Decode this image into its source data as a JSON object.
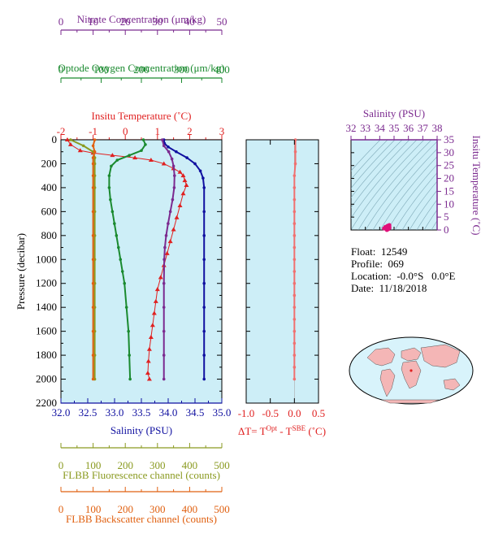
{
  "colors": {
    "panel_bg": "#cdeef7",
    "nitrate": "#7b2a8f",
    "oxygen": "#1a8a2f",
    "temperature": "#e02020",
    "salinity": "#1010a0",
    "fluorescence": "#8a9a20",
    "backscatter": "#e06010",
    "delta_t": "#f07070",
    "land": "#f4b6b6"
  },
  "info": {
    "float": "Float:  12549",
    "profile": "Profile:  069",
    "location": "Location:  -0.0°S   0.0°E",
    "date": "Date:  11/18/2018"
  },
  "chart_data": [
    {
      "type": "line",
      "panel": "profile",
      "ylabel": "Pressure (decibar)",
      "ylim": [
        2200,
        0
      ],
      "y_ticks": [
        "0",
        "200",
        "400",
        "600",
        "800",
        "1000",
        "1200",
        "1400",
        "1600",
        "1800",
        "2000",
        "2200"
      ],
      "axes": {
        "nitrate": {
          "label": "Nitrate Concentration (μm/kg)",
          "range": [
            0,
            50
          ],
          "ticks": [
            "0",
            "10",
            "20",
            "30",
            "40",
            "50"
          ]
        },
        "oxygen": {
          "label": "Optode Oxygen Concentration (μm/kg)",
          "range": [
            0,
            400
          ],
          "ticks": [
            "0",
            "100",
            "200",
            "300",
            "400"
          ]
        },
        "temperature": {
          "label": "Insitu Temperature (˚C)",
          "range": [
            -2,
            3
          ],
          "ticks": [
            "-2",
            "-1",
            "0",
            "1",
            "2",
            "3"
          ]
        },
        "salinity": {
          "label": "Salinity (PSU)",
          "range": [
            32,
            35
          ],
          "ticks": [
            "32.0",
            "32.5",
            "33.0",
            "33.5",
            "34.0",
            "34.5",
            "35.0"
          ]
        },
        "fluorescence": {
          "label": "FLBB Fluorescence channel (counts)",
          "range": [
            0,
            500
          ],
          "ticks": [
            "0",
            "100",
            "200",
            "300",
            "400",
            "500"
          ]
        },
        "backscatter": {
          "label": "FLBB Backscatter channel (counts)",
          "range": [
            0,
            500
          ],
          "ticks": [
            "0",
            "100",
            "200",
            "300",
            "400",
            "500"
          ]
        }
      },
      "series": [
        {
          "name": "Insitu Temperature",
          "axis": "temperature",
          "points": [
            [
              -1.8,
              0
            ],
            [
              -1.7,
              40
            ],
            [
              -1.4,
              90
            ],
            [
              -1.0,
              110
            ],
            [
              -0.4,
              130
            ],
            [
              0.3,
              150
            ],
            [
              0.8,
              170
            ],
            [
              1.2,
              200
            ],
            [
              1.5,
              240
            ],
            [
              1.7,
              270
            ],
            [
              1.8,
              300
            ],
            [
              1.85,
              340
            ],
            [
              1.9,
              380
            ],
            [
              1.8,
              450
            ],
            [
              1.7,
              550
            ],
            [
              1.6,
              650
            ],
            [
              1.5,
              750
            ],
            [
              1.4,
              850
            ],
            [
              1.3,
              950
            ],
            [
              1.2,
              1050
            ],
            [
              1.1,
              1150
            ],
            [
              1.0,
              1250
            ],
            [
              0.95,
              1350
            ],
            [
              0.9,
              1450
            ],
            [
              0.85,
              1550
            ],
            [
              0.8,
              1650
            ],
            [
              0.75,
              1750
            ],
            [
              0.72,
              1850
            ],
            [
              0.7,
              1950
            ],
            [
              0.75,
              2000
            ]
          ]
        },
        {
          "name": "Salinity",
          "axis": "salinity",
          "points": [
            [
              33.92,
              0
            ],
            [
              33.93,
              30
            ],
            [
              34.0,
              60
            ],
            [
              34.15,
              100
            ],
            [
              34.35,
              150
            ],
            [
              34.5,
              200
            ],
            [
              34.6,
              260
            ],
            [
              34.65,
              320
            ],
            [
              34.67,
              400
            ],
            [
              34.67,
              600
            ],
            [
              34.67,
              800
            ],
            [
              34.67,
              1000
            ],
            [
              34.67,
              1200
            ],
            [
              34.67,
              1400
            ],
            [
              34.67,
              1600
            ],
            [
              34.67,
              1800
            ],
            [
              34.67,
              2000
            ]
          ]
        },
        {
          "name": "Nitrate",
          "axis": "nitrate",
          "points": [
            [
              31.5,
              0
            ],
            [
              32,
              50
            ],
            [
              33.5,
              100
            ],
            [
              34.5,
              160
            ],
            [
              35,
              220
            ],
            [
              35.3,
              300
            ],
            [
              35.2,
              400
            ],
            [
              34.7,
              500
            ],
            [
              34,
              600
            ],
            [
              33.3,
              700
            ],
            [
              32.7,
              800
            ],
            [
              32.3,
              900
            ],
            [
              32.1,
              1000
            ],
            [
              32,
              1200
            ],
            [
              32,
              1400
            ],
            [
              32,
              1600
            ],
            [
              32,
              1800
            ],
            [
              32,
              2000
            ]
          ]
        },
        {
          "name": "Oxygen",
          "axis": "oxygen",
          "points": [
            [
              205,
              0
            ],
            [
              210,
              40
            ],
            [
              200,
              90
            ],
            [
              170,
              130
            ],
            [
              140,
              170
            ],
            [
              125,
              220
            ],
            [
              120,
              300
            ],
            [
              120,
              400
            ],
            [
              123,
              500
            ],
            [
              128,
              600
            ],
            [
              133,
              700
            ],
            [
              138,
              800
            ],
            [
              143,
              900
            ],
            [
              148,
              1000
            ],
            [
              153,
              1100
            ],
            [
              158,
              1200
            ],
            [
              163,
              1400
            ],
            [
              168,
              1600
            ],
            [
              170,
              1800
            ],
            [
              172,
              2000
            ]
          ]
        },
        {
          "name": "Fluorescence",
          "axis": "fluorescence",
          "points": [
            [
              30,
              0
            ],
            [
              70,
              50
            ],
            [
              100,
              100
            ],
            [
              105,
              150
            ],
            [
              105,
              200
            ],
            [
              105,
              300
            ],
            [
              105,
              400
            ],
            [
              105,
              600
            ],
            [
              105,
              800
            ],
            [
              105,
              1000
            ],
            [
              105,
              1200
            ],
            [
              105,
              1400
            ],
            [
              105,
              1600
            ],
            [
              105,
              1800
            ],
            [
              105,
              2000
            ]
          ]
        },
        {
          "name": "Backscatter",
          "axis": "backscatter",
          "points": [
            [
              105,
              0
            ],
            [
              100,
              50
            ],
            [
              105,
              100
            ],
            [
              100,
              150
            ],
            [
              100,
              200
            ],
            [
              100,
              300
            ],
            [
              100,
              400
            ],
            [
              100,
              600
            ],
            [
              100,
              800
            ],
            [
              100,
              1000
            ],
            [
              100,
              1200
            ],
            [
              100,
              1400
            ],
            [
              100,
              1600
            ],
            [
              100,
              1800
            ],
            [
              100,
              2000
            ]
          ]
        }
      ]
    },
    {
      "type": "line",
      "panel": "delta_t",
      "xlabel": "ΔT= T^Opt - T^SBE (˚C)",
      "xlabel_parts": {
        "prefix": "ΔT= T",
        "sup1": "Opt",
        "mid": " - T",
        "sup2": "SBE",
        "suffix": " (˚C)"
      },
      "xlim": [
        -1.0,
        0.5
      ],
      "x_ticks": [
        "-1.0",
        "-0.5",
        "0.0",
        "0.5"
      ],
      "ylim": [
        2200,
        0
      ],
      "series": [
        {
          "points": [
            [
              0.02,
              0
            ],
            [
              0.02,
              100
            ],
            [
              0.02,
              200
            ],
            [
              0.0,
              300
            ],
            [
              0.0,
              400
            ],
            [
              0.0,
              500
            ],
            [
              0.0,
              600
            ],
            [
              0.0,
              700
            ],
            [
              0.0,
              800
            ],
            [
              0.0,
              900
            ],
            [
              0.0,
              1000
            ],
            [
              0.0,
              1100
            ],
            [
              0.0,
              1200
            ],
            [
              0.0,
              1300
            ],
            [
              0.0,
              1400
            ],
            [
              0.0,
              1500
            ],
            [
              0.0,
              1600
            ],
            [
              0.0,
              1700
            ],
            [
              0.0,
              1800
            ],
            [
              0.0,
              1900
            ],
            [
              0.0,
              2000
            ]
          ]
        }
      ]
    },
    {
      "type": "scatter",
      "panel": "ts",
      "xlabel": "Salinity (PSU)",
      "ylabel": "Insitu Temperature (˚C)",
      "xlim": [
        32,
        38
      ],
      "ylim": [
        0,
        35
      ],
      "x_ticks": [
        "32",
        "33",
        "34",
        "35",
        "36",
        "37",
        "38"
      ],
      "y_ticks": [
        "0",
        "5",
        "10",
        "15",
        "20",
        "25",
        "30",
        "35"
      ],
      "series": [
        {
          "points": [
            [
              34.5,
              0.0
            ],
            [
              34.6,
              0.3
            ],
            [
              34.65,
              1.0
            ],
            [
              34.67,
              1.5
            ],
            [
              34.67,
              1.9
            ],
            [
              34.55,
              1.6
            ],
            [
              34.4,
              1.2
            ],
            [
              34.3,
              0.6
            ],
            [
              34.5,
              0.8
            ],
            [
              34.68,
              0.8
            ]
          ]
        }
      ]
    }
  ]
}
